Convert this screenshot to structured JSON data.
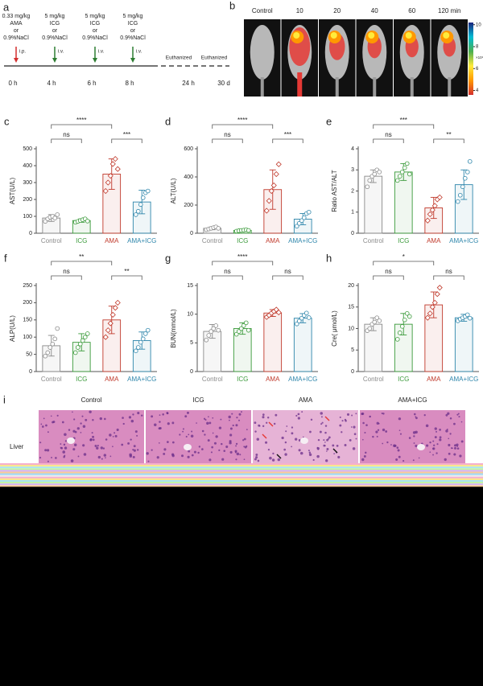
{
  "panel_a": {
    "letter": "a",
    "steps": [
      {
        "lines": [
          "0.33 mg/kg",
          "AMA",
          "or",
          "0.9%NaCl"
        ],
        "route": "i.p.",
        "time": "0 h",
        "color": "#d32f2f"
      },
      {
        "lines": [
          "5 mg/kg",
          "ICG",
          "or",
          "0.9%NaCl"
        ],
        "route": "i.v.",
        "time": "4 h",
        "color": "#2e7d32"
      },
      {
        "lines": [
          "5 mg/kg",
          "ICG",
          "or",
          "0.9%NaCl"
        ],
        "route": "i.v.",
        "time": "6 h",
        "color": "#2e7d32"
      },
      {
        "lines": [
          "5 mg/kg",
          "ICG",
          "or",
          "0.9%NaCl"
        ],
        "route": "i.v.",
        "time": "8 h",
        "color": "#2e7d32"
      }
    ],
    "events": [
      {
        "label": "Euthanized",
        "time": "24 h"
      },
      {
        "label": "Euthanized",
        "time": "30 d"
      }
    ]
  },
  "panel_b": {
    "letter": "b",
    "timepoints": [
      "Control",
      "10",
      "20",
      "40",
      "60",
      "120 min"
    ],
    "colorbar_lim": [
      3.6,
      10.2
    ],
    "colorbar_ticks": [
      10,
      8,
      6,
      4
    ],
    "colorbar_unit": "×10⁴"
  },
  "chart_data": [
    {
      "type": "bar",
      "letter": "c",
      "ylabel": "AST(U/L)",
      "categories": [
        "Control",
        "ICG",
        "AMA",
        "AMA+ICG"
      ],
      "colors": [
        "#8a8a8a",
        "#3a9a3a",
        "#c0392b",
        "#2e86ab"
      ],
      "values": [
        90,
        75,
        350,
        185
      ],
      "errors": [
        20,
        10,
        90,
        70
      ],
      "points": [
        [
          70,
          85,
          95,
          100,
          90,
          110
        ],
        [
          65,
          70,
          75,
          80,
          85,
          72
        ],
        [
          250,
          300,
          340,
          410,
          440,
          380
        ],
        [
          110,
          130,
          170,
          210,
          240,
          250
        ]
      ],
      "ylim": [
        0,
        500
      ],
      "yticks": [
        0,
        100,
        200,
        300,
        400,
        500
      ],
      "brackets": [
        {
          "text": "ns",
          "between": [
            "Control",
            "ICG"
          ]
        },
        {
          "text": "****",
          "between": [
            "Control",
            "AMA"
          ]
        },
        {
          "text": "***",
          "between": [
            "AMA",
            "AMA+ICG"
          ]
        }
      ]
    },
    {
      "type": "bar",
      "letter": "d",
      "ylabel": "ALT(U/L)",
      "categories": [
        "Control",
        "ICG",
        "AMA",
        "AMA+ICG"
      ],
      "colors": [
        "#8a8a8a",
        "#3a9a3a",
        "#c0392b",
        "#2e86ab"
      ],
      "values": [
        35,
        20,
        310,
        100
      ],
      "errors": [
        10,
        5,
        140,
        40
      ],
      "points": [
        [
          25,
          30,
          35,
          40,
          45,
          35
        ],
        [
          15,
          18,
          20,
          22,
          25,
          20
        ],
        [
          160,
          230,
          300,
          340,
          420,
          490
        ],
        [
          50,
          70,
          90,
          110,
          140,
          150
        ]
      ],
      "ylim": [
        0,
        600
      ],
      "yticks": [
        0,
        200,
        400,
        600
      ],
      "brackets": [
        {
          "text": "ns",
          "between": [
            "Control",
            "ICG"
          ]
        },
        {
          "text": "****",
          "between": [
            "Control",
            "AMA"
          ]
        },
        {
          "text": "***",
          "between": [
            "AMA",
            "AMA+ICG"
          ]
        }
      ]
    },
    {
      "type": "bar",
      "letter": "e",
      "ylabel": "Ratio AST/ALT",
      "categories": [
        "Control",
        "ICG",
        "AMA",
        "AMA+ICG"
      ],
      "colors": [
        "#8a8a8a",
        "#3a9a3a",
        "#c0392b",
        "#2e86ab"
      ],
      "values": [
        2.7,
        2.9,
        1.2,
        2.3
      ],
      "errors": [
        0.3,
        0.4,
        0.5,
        0.7
      ],
      "points": [
        [
          2.2,
          2.5,
          2.7,
          2.8,
          3.0,
          2.9
        ],
        [
          2.5,
          2.7,
          2.9,
          3.1,
          3.3,
          2.8
        ],
        [
          0.6,
          0.9,
          1.1,
          1.3,
          1.6,
          1.7
        ],
        [
          1.5,
          1.8,
          2.2,
          2.6,
          2.9,
          3.4
        ]
      ],
      "ylim": [
        0,
        4
      ],
      "yticks": [
        0,
        1,
        2,
        3,
        4
      ],
      "brackets": [
        {
          "text": "ns",
          "between": [
            "Control",
            "ICG"
          ]
        },
        {
          "text": "***",
          "between": [
            "Control",
            "AMA"
          ]
        },
        {
          "text": "**",
          "between": [
            "AMA",
            "AMA+ICG"
          ]
        }
      ]
    },
    {
      "type": "bar",
      "letter": "f",
      "ylabel": "ALP(U/L)",
      "categories": [
        "Control",
        "ICG",
        "AMA",
        "AMA+ICG"
      ],
      "colors": [
        "#8a8a8a",
        "#3a9a3a",
        "#c0392b",
        "#2e86ab"
      ],
      "values": [
        75,
        85,
        150,
        90
      ],
      "errors": [
        30,
        25,
        40,
        25
      ],
      "points": [
        [
          45,
          55,
          70,
          80,
          95,
          125
        ],
        [
          55,
          70,
          80,
          90,
          100,
          110
        ],
        [
          100,
          120,
          140,
          165,
          185,
          200
        ],
        [
          60,
          70,
          85,
          95,
          110,
          120
        ]
      ],
      "ylim": [
        0,
        250
      ],
      "yticks": [
        0,
        50,
        100,
        150,
        200,
        250
      ],
      "brackets": [
        {
          "text": "ns",
          "between": [
            "Control",
            "ICG"
          ]
        },
        {
          "text": "**",
          "between": [
            "Control",
            "AMA"
          ]
        },
        {
          "text": "**",
          "between": [
            "AMA",
            "AMA+ICG"
          ]
        }
      ]
    },
    {
      "type": "bar",
      "letter": "g",
      "ylabel": "BUN(mmol/L)",
      "categories": [
        "Control",
        "ICG",
        "AMA",
        "AMA+ICG"
      ],
      "colors": [
        "#8a8a8a",
        "#3a9a3a",
        "#c0392b",
        "#2e86ab"
      ],
      "values": [
        7,
        7.5,
        10.2,
        9.3
      ],
      "errors": [
        1.2,
        1,
        0.6,
        0.8
      ],
      "points": [
        [
          5.5,
          6.3,
          7,
          7.5,
          8,
          7.2
        ],
        [
          6.5,
          7,
          7.5,
          8,
          8.5,
          7.2
        ],
        [
          9.5,
          9.8,
          10.2,
          10.5,
          10.8,
          10.3
        ],
        [
          8.3,
          8.8,
          9.3,
          9.8,
          10.2,
          9.4
        ]
      ],
      "ylim": [
        0,
        15
      ],
      "yticks": [
        0,
        5,
        10,
        15
      ],
      "brackets": [
        {
          "text": "ns",
          "between": [
            "Control",
            "ICG"
          ]
        },
        {
          "text": "****",
          "between": [
            "Control",
            "AMA"
          ]
        },
        {
          "text": "ns",
          "between": [
            "AMA",
            "AMA+ICG"
          ]
        }
      ]
    },
    {
      "type": "bar",
      "letter": "h",
      "ylabel": "Cre( μmol/L)",
      "categories": [
        "Control",
        "ICG",
        "AMA",
        "AMA+ICG"
      ],
      "colors": [
        "#8a8a8a",
        "#3a9a3a",
        "#c0392b",
        "#2e86ab"
      ],
      "values": [
        11,
        11,
        15.5,
        12.5
      ],
      "errors": [
        1.5,
        2.5,
        3,
        0.8
      ],
      "points": [
        [
          9.5,
          10,
          11,
          11.5,
          12.5,
          11.8
        ],
        [
          7.5,
          9,
          10.5,
          12,
          13.5,
          12.8
        ],
        [
          12.5,
          13.5,
          15,
          16,
          18,
          19.5
        ],
        [
          11.8,
          12.2,
          12.5,
          12.8,
          13.2,
          12.4
        ]
      ],
      "ylim": [
        0,
        20
      ],
      "yticks": [
        0,
        5,
        10,
        15,
        20
      ],
      "brackets": [
        {
          "text": "ns",
          "between": [
            "Control",
            "ICG"
          ]
        },
        {
          "text": "*",
          "between": [
            "Control",
            "AMA"
          ]
        },
        {
          "text": "ns",
          "between": [
            "AMA",
            "AMA+ICG"
          ]
        }
      ]
    }
  ],
  "panel_i": {
    "letter": "i",
    "columns": [
      "Control",
      "ICG",
      "AMA",
      "AMA+ICG"
    ],
    "row": "Liver"
  }
}
